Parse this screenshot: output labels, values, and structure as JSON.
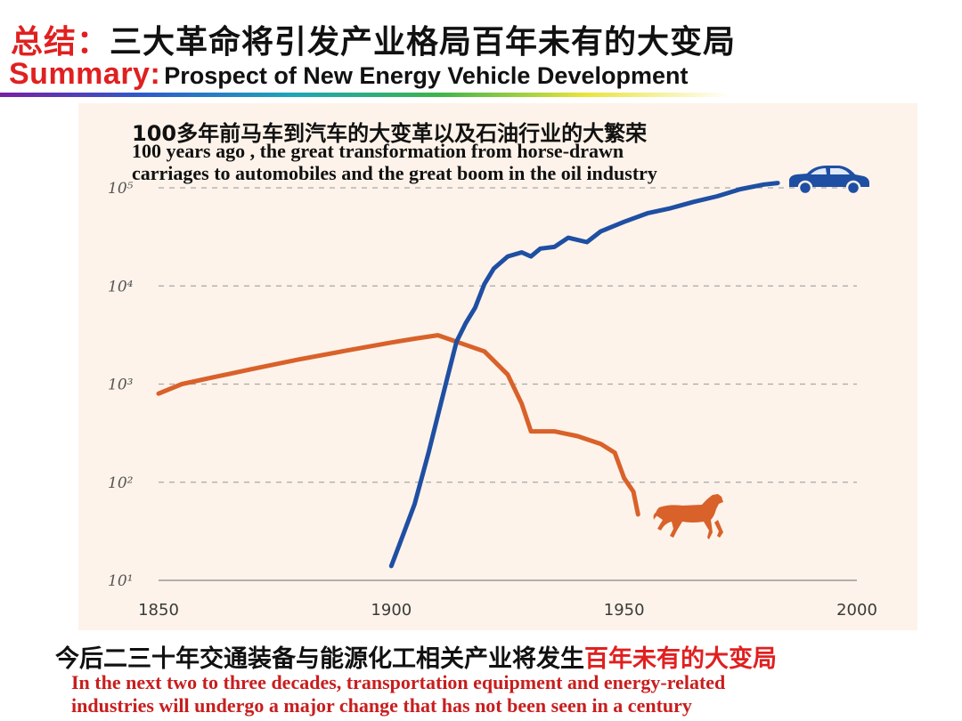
{
  "header": {
    "title_cn_prefix": "总结：",
    "title_cn_main": "三大革命将引发产业格局百年未有的大变局",
    "title_en_prefix": "Summary:",
    "title_en_main": "Prospect of New Energy Vehicle Development"
  },
  "annotation": {
    "cn": "100多年前马车到汽车的大变革以及石油行业的大繁荣",
    "en": "100 years ago , the great transformation from horse-drawn\ncarriages to automobiles and the great boom in the oil industry"
  },
  "footer": {
    "cn_prefix": "今后二三十年交通装备与能源化工相关产业将发生",
    "cn_highlight": "百年未有的大变局",
    "en": "In the next two to three decades, transportation equipment and energy-related\nindustries will undergo a major change that has not been seen in a century"
  },
  "icons": {
    "car": "car-icon",
    "horse": "horse-icon"
  },
  "colors": {
    "car_series": "#1f4fa3",
    "horse_series": "#d9612a",
    "title_red": "#e02020",
    "panel_bg": "#fdf3ea"
  },
  "chart_data": {
    "type": "line",
    "title": "",
    "xlabel": "",
    "ylabel": "",
    "x_scale": "linear",
    "y_scale": "log",
    "xlim": [
      1850,
      2000
    ],
    "ylim": [
      10,
      100000
    ],
    "x_ticks": [
      1850,
      1900,
      1950,
      2000
    ],
    "y_ticks": [
      {
        "value": 10,
        "label": "10¹"
      },
      {
        "value": 100,
        "label": "10²"
      },
      {
        "value": 1000,
        "label": "10³"
      },
      {
        "value": 10000,
        "label": "10⁴"
      },
      {
        "value": 100000,
        "label": "10⁵"
      }
    ],
    "grid": "horizontal-dashed",
    "series": [
      {
        "color": "#d9612a",
        "icon": "horse-icon",
        "points": [
          [
            1850,
            800
          ],
          [
            1855,
            1000
          ],
          [
            1862,
            1180
          ],
          [
            1870,
            1420
          ],
          [
            1880,
            1780
          ],
          [
            1890,
            2180
          ],
          [
            1900,
            2650
          ],
          [
            1905,
            2900
          ],
          [
            1910,
            3150
          ],
          [
            1915,
            2600
          ],
          [
            1920,
            2150
          ],
          [
            1925,
            1250
          ],
          [
            1928,
            630
          ],
          [
            1930,
            330
          ],
          [
            1935,
            330
          ],
          [
            1940,
            295
          ],
          [
            1945,
            245
          ],
          [
            1948,
            200
          ],
          [
            1950,
            110
          ],
          [
            1952,
            80
          ],
          [
            1953,
            47
          ]
        ]
      },
      {
        "color": "#1f4fa3",
        "icon": "car-icon",
        "points": [
          [
            1900,
            14
          ],
          [
            1902,
            25
          ],
          [
            1905,
            60
          ],
          [
            1908,
            200
          ],
          [
            1910,
            480
          ],
          [
            1912,
            1150
          ],
          [
            1914,
            2700
          ],
          [
            1916,
            4200
          ],
          [
            1918,
            6000
          ],
          [
            1920,
            10500
          ],
          [
            1922,
            15000
          ],
          [
            1925,
            20000
          ],
          [
            1928,
            22000
          ],
          [
            1930,
            20000
          ],
          [
            1932,
            24000
          ],
          [
            1935,
            25000
          ],
          [
            1938,
            31000
          ],
          [
            1942,
            28000
          ],
          [
            1945,
            36000
          ],
          [
            1950,
            45000
          ],
          [
            1955,
            55000
          ],
          [
            1960,
            62000
          ],
          [
            1965,
            72000
          ],
          [
            1970,
            82000
          ],
          [
            1975,
            97000
          ],
          [
            1980,
            108000
          ],
          [
            1983,
            112000
          ]
        ]
      }
    ]
  }
}
